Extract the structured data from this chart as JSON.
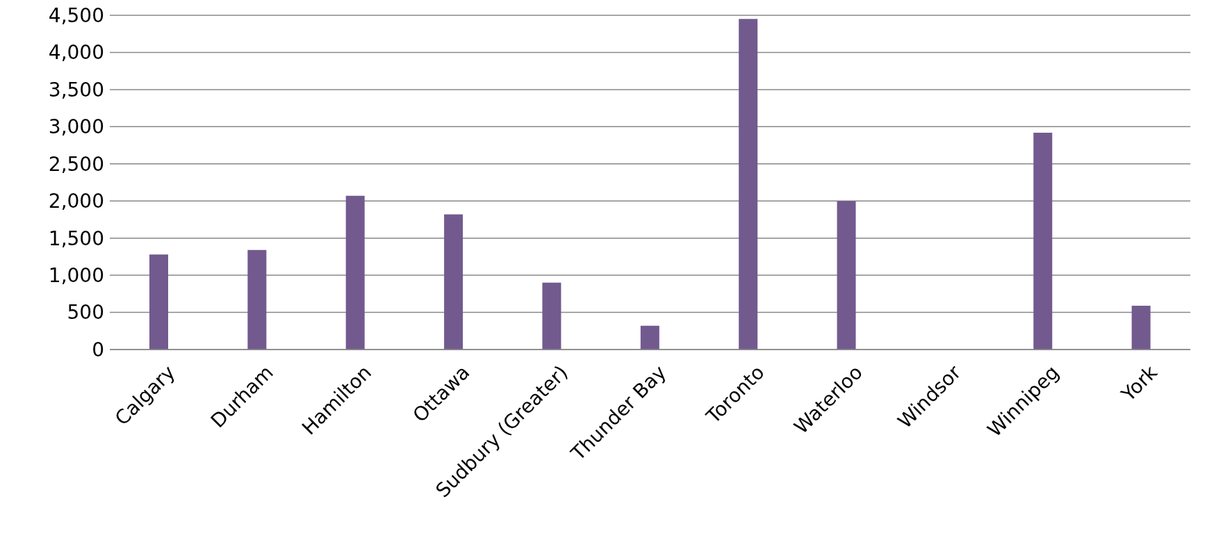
{
  "chart_data": {
    "type": "bar",
    "categories": [
      "Calgary",
      "Durham",
      "Hamilton",
      "Ottawa",
      "Sudbury (Greater)",
      "Thunder Bay",
      "Toronto",
      "Waterloo",
      "Windsor",
      "Winnipeg",
      "York"
    ],
    "values": [
      1280,
      1340,
      2070,
      1820,
      900,
      320,
      4450,
      2000,
      0,
      2920,
      590
    ],
    "color": "#725a8f",
    "ylim": [
      0,
      4500
    ],
    "yticks": [
      0,
      500,
      {
        "value": 1000,
        "label": "1,000"
      },
      {
        "value": 1500,
        "label": "1,500"
      },
      {
        "value": 2000,
        "label": "2,000"
      },
      {
        "value": 2500,
        "label": "2,500"
      },
      {
        "value": 3000,
        "label": "3,000"
      },
      {
        "value": 3500,
        "label": "3,500"
      },
      {
        "value": 4000,
        "label": "4,000"
      },
      {
        "value": 4500,
        "label": "4,500"
      }
    ],
    "grid": "y"
  }
}
